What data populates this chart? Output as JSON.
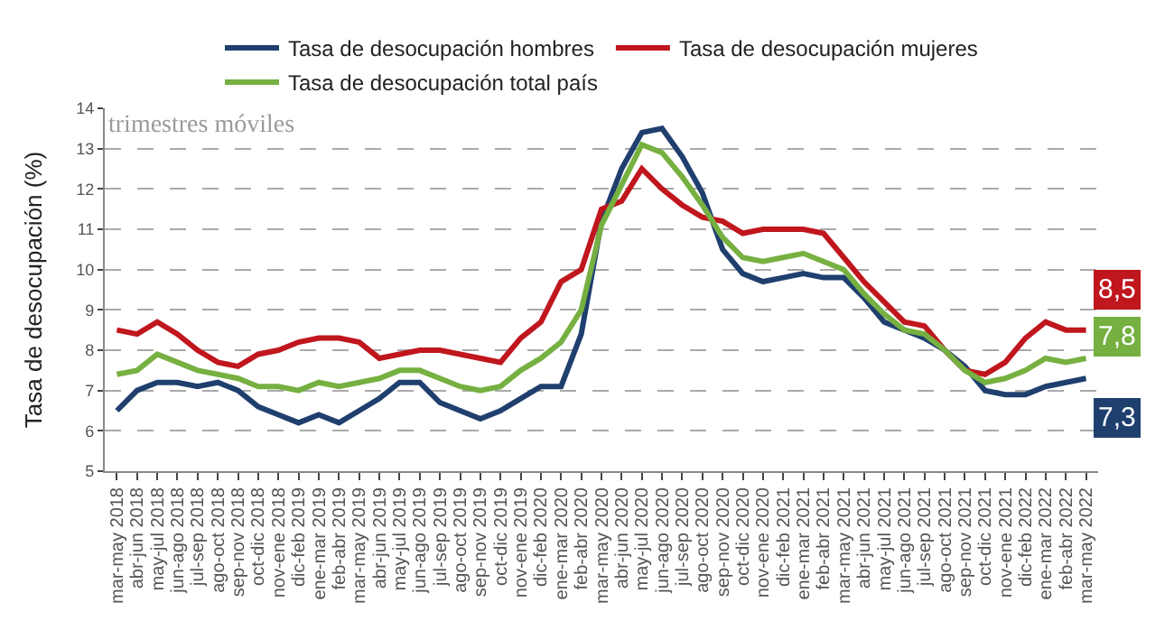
{
  "chart_data": {
    "type": "line",
    "title": "trimestres móviles",
    "ylabel": "Tasa de desocupación (%)",
    "categories": [
      "mar-may 2018",
      "abr-jun 2018",
      "may-jul 2018",
      "jun-ago 2018",
      "jul-sep 2018",
      "ago-oct 2018",
      "sep-nov 2018",
      "oct-dic 2018",
      "nov-ene 2018",
      "dic-feb 2019",
      "ene-mar 2019",
      "feb-abr 2019",
      "mar-may 2019",
      "abr-jun 2019",
      "may-jul 2019",
      "jun-ago 2019",
      "jul-sep 2019",
      "ago-oct 2019",
      "sep-nov 2019",
      "oct-dic 2019",
      "nov-ene 2019",
      "dic-feb 2020",
      "ene-mar 2020",
      "feb-abr 2020",
      "mar-may 2020",
      "abr-jun 2020",
      "may-jul 2020",
      "jun-ago 2020",
      "jul-sep 2020",
      "ago-oct 2020",
      "sep-nov 2020",
      "oct-dic 2020",
      "nov-ene 2020",
      "dic-feb 2021",
      "ene-mar 2021",
      "feb-abr 2021",
      "mar-may 2021",
      "abr-jun 2021",
      "may-jul 2021",
      "jun-ago 2021",
      "jul-sep 2021",
      "ago-oct 2021",
      "sep-nov 2021",
      "oct-dic 2021",
      "nov-ene 2021",
      "dic-feb 2022",
      "ene-mar 2022",
      "feb-abr 2022",
      "mar-may 2022"
    ],
    "series": [
      {
        "name": "Tasa de desocupación hombres",
        "color": "#1f3f6e",
        "values": [
          6.5,
          7.0,
          7.2,
          7.2,
          7.1,
          7.2,
          7.0,
          6.6,
          6.4,
          6.2,
          6.4,
          6.2,
          6.5,
          6.8,
          7.2,
          7.2,
          6.7,
          6.5,
          6.3,
          6.5,
          6.8,
          7.1,
          7.1,
          8.4,
          11.2,
          12.5,
          13.4,
          13.5,
          12.8,
          11.9,
          10.5,
          9.9,
          9.7,
          9.8,
          9.9,
          9.8,
          9.8,
          9.3,
          8.7,
          8.5,
          8.3,
          8.0,
          7.6,
          7.0,
          6.9,
          6.9,
          7.1,
          7.2,
          7.3
        ],
        "value_labels": [
          null,
          null,
          null,
          null,
          null,
          null,
          null,
          null,
          null,
          null,
          null,
          null,
          null,
          null,
          null,
          null,
          null,
          null,
          null,
          null,
          null,
          null,
          null,
          null,
          null,
          null,
          null,
          null,
          null,
          null,
          null,
          null,
          null,
          null,
          null,
          null,
          null,
          null,
          null,
          null,
          null,
          null,
          null,
          null,
          null,
          null,
          null,
          null,
          "7,3"
        ]
      },
      {
        "name": "Tasa de desocupación mujeres",
        "color": "#c0161d",
        "values": [
          8.5,
          8.4,
          8.7,
          8.4,
          8.0,
          7.7,
          7.6,
          7.9,
          8.0,
          8.2,
          8.3,
          8.3,
          8.2,
          7.8,
          7.9,
          8.0,
          8.0,
          7.9,
          7.8,
          7.7,
          8.3,
          8.7,
          9.7,
          10.0,
          11.5,
          11.7,
          12.5,
          12.0,
          11.6,
          11.3,
          11.2,
          10.9,
          11.0,
          11.0,
          11.0,
          10.9,
          10.3,
          9.7,
          9.2,
          8.7,
          8.6,
          8.0,
          7.5,
          7.4,
          7.7,
          8.3,
          8.7,
          8.5,
          8.5
        ],
        "value_labels": [
          null,
          null,
          null,
          null,
          null,
          null,
          null,
          null,
          null,
          null,
          null,
          null,
          null,
          null,
          null,
          null,
          null,
          null,
          null,
          null,
          null,
          null,
          null,
          null,
          null,
          null,
          null,
          null,
          null,
          null,
          null,
          null,
          null,
          null,
          null,
          null,
          null,
          null,
          null,
          null,
          null,
          null,
          null,
          null,
          null,
          null,
          null,
          null,
          "8,5"
        ]
      },
      {
        "name": "Tasa de desocupación total país",
        "color": "#76b041",
        "values": [
          7.4,
          7.5,
          7.9,
          7.7,
          7.5,
          7.4,
          7.3,
          7.1,
          7.1,
          7.0,
          7.2,
          7.1,
          7.2,
          7.3,
          7.5,
          7.5,
          7.3,
          7.1,
          7.0,
          7.1,
          7.5,
          7.8,
          8.2,
          9.0,
          11.1,
          12.1,
          13.1,
          12.9,
          12.3,
          11.6,
          10.8,
          10.3,
          10.2,
          10.3,
          10.4,
          10.2,
          10.0,
          9.4,
          8.9,
          8.5,
          8.4,
          8.0,
          7.5,
          7.2,
          7.3,
          7.5,
          7.8,
          7.7,
          7.8
        ],
        "value_labels": [
          null,
          null,
          null,
          null,
          null,
          null,
          null,
          null,
          null,
          null,
          null,
          null,
          null,
          null,
          null,
          null,
          null,
          null,
          null,
          null,
          null,
          null,
          null,
          null,
          null,
          null,
          null,
          null,
          null,
          null,
          null,
          null,
          null,
          null,
          null,
          null,
          null,
          null,
          null,
          null,
          null,
          null,
          null,
          null,
          null,
          null,
          null,
          null,
          "7,8"
        ]
      }
    ],
    "ylim": [
      5,
      14
    ],
    "yticks": [
      5,
      6,
      7,
      8,
      9,
      10,
      11,
      12,
      13,
      14
    ],
    "grid": "y",
    "legend": "top",
    "marker": "none",
    "line_style": "solid"
  }
}
